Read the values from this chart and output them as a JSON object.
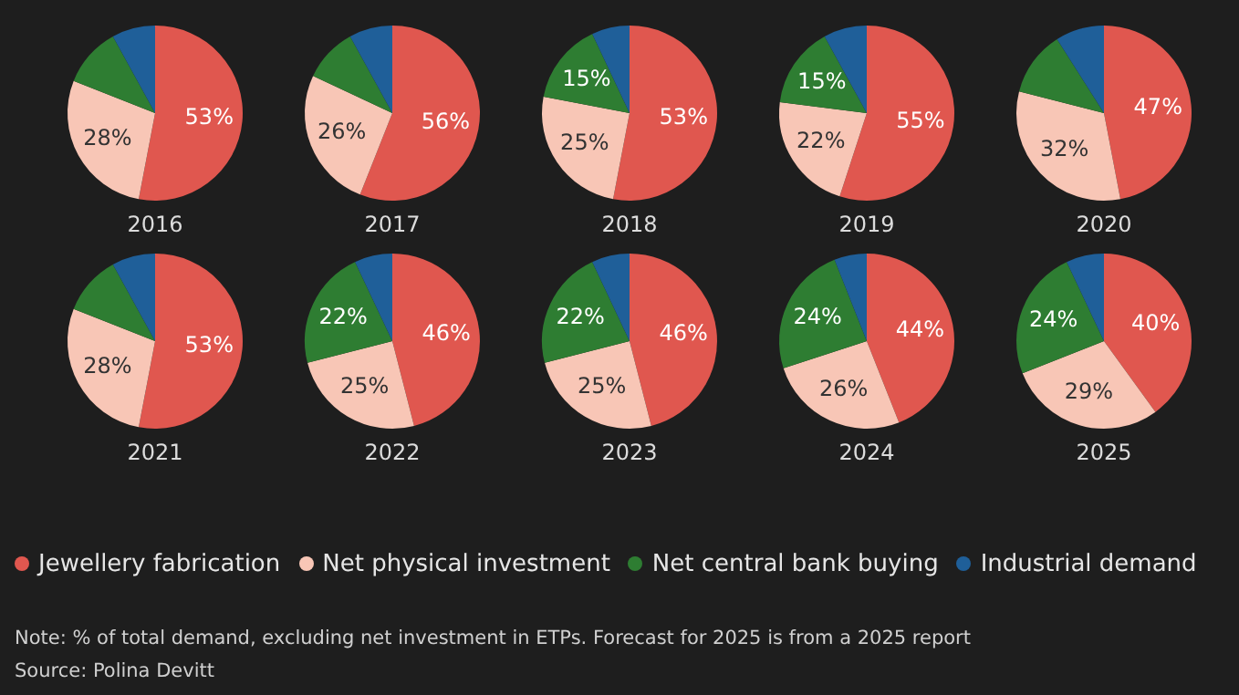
{
  "chart_data": [
    {
      "type": "pie",
      "title": "2016",
      "categories": [
        "Jewellery fabrication",
        "Net physical investment",
        "Net central bank buying",
        "Industrial demand"
      ],
      "colors": [
        "#e0574f",
        "#f8c6b6",
        "#2e7d32",
        "#1f5f99"
      ],
      "values": [
        53,
        28,
        11,
        8
      ],
      "value_labels": [
        "53%",
        "28%",
        null,
        null
      ],
      "legend": "bottom"
    },
    {
      "type": "pie",
      "title": "2017",
      "categories": [
        null,
        null,
        null,
        null
      ],
      "colors": [
        "#e0574f",
        "#f8c6b6",
        "#2e7d32",
        "#1f5f99"
      ],
      "values": [
        56,
        26,
        10,
        8
      ],
      "value_labels": [
        "56%",
        "26%",
        null,
        null
      ]
    },
    {
      "type": "pie",
      "title": "2018",
      "categories": [
        null,
        null,
        null,
        null
      ],
      "colors": [
        "#e0574f",
        "#f8c6b6",
        "#2e7d32",
        "#1f5f99"
      ],
      "values": [
        53,
        25,
        15,
        7
      ],
      "value_labels": [
        "53%",
        "25%",
        "15%",
        null
      ]
    },
    {
      "type": "pie",
      "title": "2019",
      "categories": [
        null,
        null,
        null,
        null
      ],
      "colors": [
        "#e0574f",
        "#f8c6b6",
        "#2e7d32",
        "#1f5f99"
      ],
      "values": [
        55,
        22,
        15,
        8
      ],
      "value_labels": [
        "55%",
        "22%",
        "15%",
        null
      ]
    },
    {
      "type": "pie",
      "title": "2020",
      "categories": [
        null,
        null,
        null,
        null
      ],
      "colors": [
        "#e0574f",
        "#f8c6b6",
        "#2e7d32",
        "#1f5f99"
      ],
      "values": [
        47,
        32,
        12,
        9
      ],
      "value_labels": [
        "47%",
        "32%",
        null,
        null
      ]
    },
    {
      "type": "pie",
      "title": "2021",
      "categories": [
        null,
        null,
        null,
        null
      ],
      "colors": [
        "#e0574f",
        "#f8c6b6",
        "#2e7d32",
        "#1f5f99"
      ],
      "values": [
        53,
        28,
        11,
        8
      ],
      "value_labels": [
        "53%",
        "28%",
        null,
        null
      ]
    },
    {
      "type": "pie",
      "title": "2022",
      "categories": [
        null,
        null,
        null,
        null
      ],
      "colors": [
        "#e0574f",
        "#f8c6b6",
        "#2e7d32",
        "#1f5f99"
      ],
      "values": [
        46,
        25,
        22,
        7
      ],
      "value_labels": [
        "46%",
        "25%",
        "22%",
        null
      ]
    },
    {
      "type": "pie",
      "title": "2023",
      "categories": [
        null,
        null,
        null,
        null
      ],
      "colors": [
        "#e0574f",
        "#f8c6b6",
        "#2e7d32",
        "#1f5f99"
      ],
      "values": [
        46,
        25,
        22,
        7
      ],
      "value_labels": [
        "46%",
        "25%",
        "22%",
        null
      ]
    },
    {
      "type": "pie",
      "title": "2024",
      "categories": [
        null,
        null,
        null,
        null
      ],
      "colors": [
        "#e0574f",
        "#f8c6b6",
        "#2e7d32",
        "#1f5f99"
      ],
      "values": [
        44,
        26,
        24,
        6
      ],
      "value_labels": [
        "44%",
        "26%",
        "24%",
        null
      ]
    },
    {
      "type": "pie",
      "title": "2025",
      "categories": [
        null,
        null,
        null,
        null
      ],
      "colors": [
        "#e0574f",
        "#f8c6b6",
        "#2e7d32",
        "#1f5f99"
      ],
      "values": [
        40,
        29,
        24,
        7
      ],
      "value_labels": [
        "40%",
        "29%",
        "24%",
        null
      ]
    },
    {
      "type": "other",
      "annotations": [
        "Note: % of total demand, excluding net investment in ETPs. Forecast for 2025 is from a 2025 report",
        "Source: Polina Devitt"
      ]
    }
  ]
}
